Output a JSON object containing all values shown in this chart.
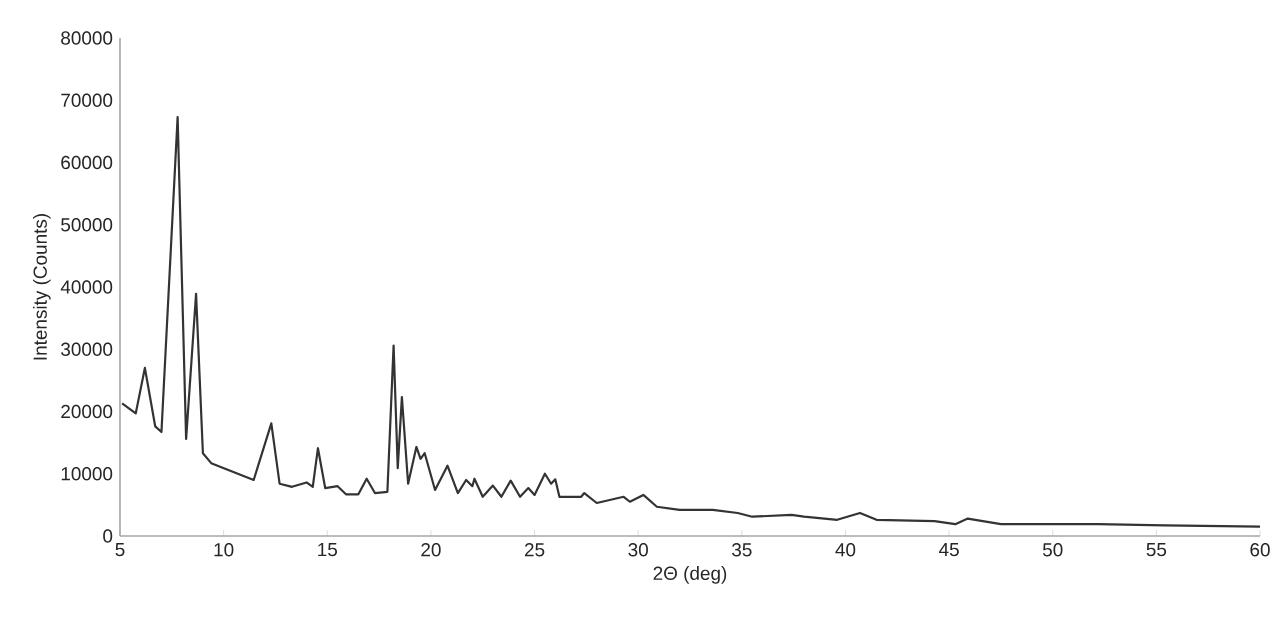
{
  "chart_data": {
    "type": "line",
    "xlabel": "2Θ (deg)",
    "ylabel": "Intensity (Counts)",
    "xlim": [
      5,
      60
    ],
    "xticks": [
      5,
      10,
      15,
      20,
      25,
      30,
      35,
      40,
      45,
      50,
      55,
      60
    ],
    "ylim": [
      0,
      80000
    ],
    "yticks": [
      0,
      10000,
      20000,
      30000,
      40000,
      50000,
      60000,
      70000,
      80000
    ],
    "grid": false,
    "legend": false,
    "marker": "none",
    "line_style": "solid",
    "series": [
      {
        "color": "#333333",
        "x": [
          5.1,
          5.76,
          6.2,
          6.7,
          7.0,
          7.78,
          8.19,
          8.67,
          9.0,
          9.4,
          11.45,
          12.3,
          12.7,
          13.3,
          14.0,
          14.3,
          14.55,
          14.9,
          15.5,
          15.9,
          16.5,
          16.9,
          17.3,
          17.9,
          18.2,
          18.4,
          18.6,
          18.9,
          19.3,
          19.5,
          19.7,
          20.2,
          20.8,
          21.3,
          21.7,
          22.0,
          22.1,
          22.5,
          22.99,
          23.4,
          23.85,
          24.3,
          24.7,
          25.0,
          25.5,
          25.8,
          26.0,
          26.2,
          27.25,
          27.4,
          28.0,
          29.3,
          29.6,
          30.25,
          30.9,
          32.0,
          33.6,
          34.8,
          35.5,
          37.4,
          38.0,
          39.6,
          40.7,
          41.5,
          44.3,
          45.3,
          45.9,
          47.5,
          52.2,
          55.4,
          60
        ],
        "values": [
          21300,
          19700,
          27000,
          17600,
          16700,
          67300,
          15600,
          38900,
          13300,
          11700,
          9000,
          18100,
          8400,
          7900,
          8600,
          7900,
          14100,
          7700,
          8000,
          6700,
          6700,
          9200,
          6900,
          7100,
          30600,
          10900,
          22300,
          8400,
          14300,
          12400,
          13300,
          7400,
          11300,
          6900,
          9000,
          8000,
          9200,
          6300,
          8100,
          6300,
          8900,
          6300,
          7700,
          6600,
          10000,
          8400,
          9100,
          6300,
          6300,
          6900,
          5300,
          6300,
          5500,
          6600,
          4700,
          4200,
          4200,
          3700,
          3100,
          3400,
          3100,
          2600,
          3700,
          2600,
          2400,
          1900,
          2800,
          1900,
          1900,
          1700,
          1500
        ]
      }
    ]
  }
}
